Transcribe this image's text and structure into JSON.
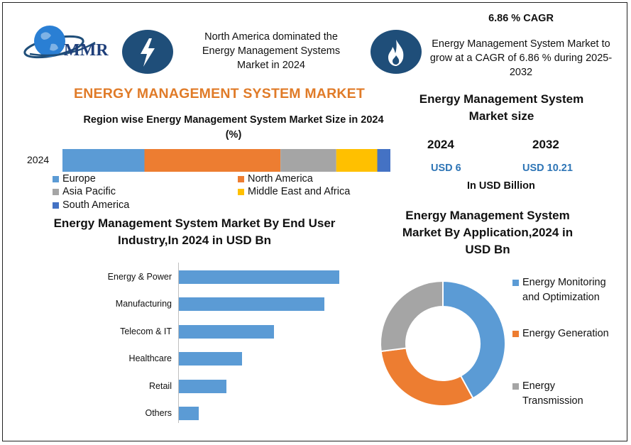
{
  "header": {
    "logo_text": "MMR",
    "headline": "North America dominated the Energy Management Systems Market in 2024",
    "cagr_title": "6.86 % CAGR",
    "cagr_text": "Energy Management System Market to grow at a CAGR of 6.86 % during 2025-2032",
    "icon_left": "lightning-bolt-icon",
    "icon_right": "flame-icon"
  },
  "main_title": "ENERGY MANAGEMENT SYSTEM MARKET",
  "colors": {
    "title_orange": "#e07b28",
    "navy": "#1f4e79",
    "value_blue": "#2e75b6",
    "europe": "#5b9bd5",
    "north_america": "#ed7d31",
    "asia_pacific": "#a5a5a5",
    "mea": "#ffc000",
    "south_america": "#4472c4"
  },
  "market_size": {
    "title": "Energy Management System Market size",
    "year1": "2024",
    "year2": "2032",
    "value1": "USD 6",
    "value2": "USD 10.21",
    "unit": "In USD Billion"
  },
  "chart_data": [
    {
      "type": "bar",
      "orientation": "horizontal-stacked",
      "title": "Region wise Energy Management System Market Size in 2024 (%)",
      "categories": [
        "2024"
      ],
      "series": [
        {
          "name": "Europe",
          "values": [
            25
          ]
        },
        {
          "name": "North America",
          "values": [
            41.5
          ]
        },
        {
          "name": "Asia Pacific",
          "values": [
            17
          ]
        },
        {
          "name": "Middle East and Africa",
          "values": [
            12.5
          ]
        },
        {
          "name": "South America",
          "values": [
            4
          ]
        }
      ],
      "legend": "bottom"
    },
    {
      "type": "bar",
      "orientation": "horizontal",
      "title": "Energy Management System Market By  End User Industry,In 2024 in USD Bn",
      "categories": [
        "Energy & Power",
        "Manufacturing",
        "Telecom & IT",
        "Healthcare",
        "Retail",
        "Others"
      ],
      "values": [
        2.2,
        2.0,
        1.3,
        0.87,
        0.65,
        0.27
      ],
      "xlim": [
        0,
        2.2
      ],
      "grid": false
    },
    {
      "type": "pie",
      "variant": "doughnut",
      "title": "Energy Management System Market By Application,2024 in USD Bn",
      "categories": [
        "Energy Monitoring and Optimization",
        "Energy Generation",
        "Energy Transmission"
      ],
      "values": [
        42,
        31,
        27
      ],
      "legend": "right"
    }
  ]
}
